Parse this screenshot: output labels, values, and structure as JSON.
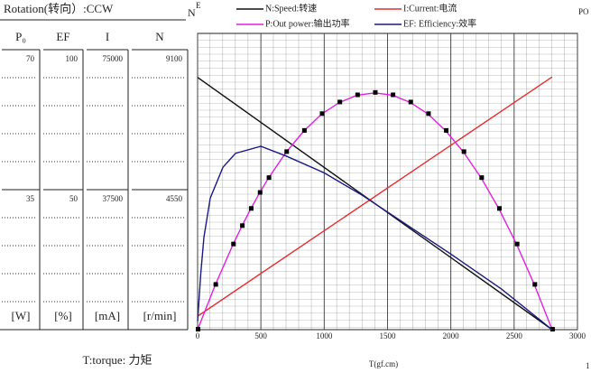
{
  "chart_data": {
    "type": "line",
    "title": "Rotation(转向）:CCW",
    "footer": "T:torque: 力矩",
    "xlabel": "T(gf.cm)",
    "corner_labels": [
      "N",
      "E",
      "PO",
      "1"
    ],
    "xlim": [
      0,
      3000
    ],
    "xticks": [
      0,
      500,
      1000,
      1500,
      2000,
      2500,
      3000
    ],
    "grid": true,
    "axes": [
      {
        "label": "P₀",
        "unit": "[W]",
        "ylim": [
          0,
          70
        ],
        "yticks": [
          35,
          70
        ]
      },
      {
        "label": "EF",
        "unit": "[%]",
        "ylim": [
          0,
          100
        ],
        "yticks": [
          50,
          100
        ]
      },
      {
        "label": "I",
        "unit": "[mA]",
        "ylim": [
          0,
          75000
        ],
        "yticks": [
          37500,
          75000
        ]
      },
      {
        "label": "N",
        "unit": "[r/min]",
        "ylim": [
          0,
          9100
        ],
        "yticks": [
          4550,
          9100
        ]
      }
    ],
    "series": [
      {
        "name": "N:Speed:转速",
        "color": "#111111",
        "axis": 3,
        "markers": false,
        "x": [
          0,
          2800
        ],
        "values": [
          8200,
          0
        ]
      },
      {
        "name": "I:Current:电流",
        "color": "#e03030",
        "axis": 2,
        "markers": false,
        "x": [
          0,
          2800
        ],
        "values": [
          3600,
          67700
        ]
      },
      {
        "name": "P:Out power:输出功率",
        "color": "#e020e0",
        "axis": 0,
        "markers": true,
        "x": [
          0,
          140,
          280,
          350,
          420,
          490,
          560,
          700,
          840,
          980,
          1120,
          1260,
          1400,
          1540,
          1680,
          1820,
          1960,
          2100,
          2240,
          2380,
          2520,
          2660,
          2800
        ],
        "values": [
          0,
          11.2,
          21.3,
          25.9,
          30.2,
          34.2,
          37.9,
          44.4,
          49.7,
          53.9,
          56.8,
          58.6,
          59.2,
          58.6,
          56.8,
          53.9,
          49.7,
          44.4,
          37.9,
          30.2,
          21.3,
          11.2,
          0
        ]
      },
      {
        "name": "EF: Efficiency:效率",
        "color": "#1a1a80",
        "axis": 1,
        "markers": false,
        "x": [
          0,
          25,
          50,
          100,
          200,
          300,
          500,
          700,
          1000,
          1300,
          1600,
          2000,
          2400,
          2800
        ],
        "values": [
          3,
          20,
          33,
          47,
          58,
          63,
          65.5,
          62,
          56,
          48,
          39,
          27,
          14.5,
          0
        ]
      }
    ]
  }
}
